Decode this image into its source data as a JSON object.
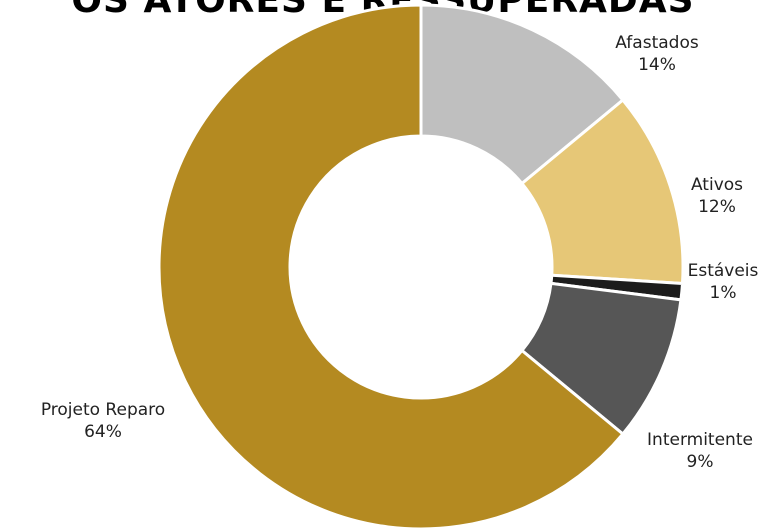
{
  "chart_data": {
    "type": "pie",
    "title": "OS ATORES E RESSUPERADAS",
    "slices": [
      {
        "name": "Afastados",
        "value": 14,
        "label": "14%",
        "color": "#bfbfbf"
      },
      {
        "name": "Ativos",
        "value": 12,
        "label": "12%",
        "color": "#e6c777"
      },
      {
        "name": "Estáveis",
        "value": 1,
        "label": "1%",
        "color": "#1c1c1c"
      },
      {
        "name": "Intermitente",
        "value": 9,
        "label": "9%",
        "color": "#565656"
      },
      {
        "name": "Projeto Reparo",
        "value": 64,
        "label": "64%",
        "color": "#b48a21"
      }
    ],
    "donut": true,
    "legend": "none"
  }
}
